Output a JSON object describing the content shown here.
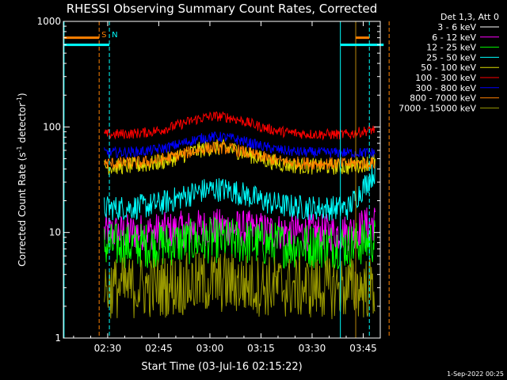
{
  "chart_data": {
    "type": "line",
    "title": "RHESSI Observing Summary Count Rates, Corrected",
    "xlabel": "Start Time (03-Jul-16 02:15:22)",
    "ylabel_main": "Corrected Count Rate (s",
    "ylabel_sup1": "-1",
    "ylabel_mid": " detector",
    "ylabel_sup2": "-1",
    "ylabel_end": ")",
    "yscale": "log",
    "ylim": [
      1,
      1000
    ],
    "xlim_minutes": [
      2.0,
      95.0
    ],
    "x_ticks": [
      {
        "minute": 15,
        "label": "02:30"
      },
      {
        "minute": 30,
        "label": "02:45"
      },
      {
        "minute": 45,
        "label": "03:00"
      },
      {
        "minute": 60,
        "label": "03:15"
      },
      {
        "minute": 75,
        "label": "03:30"
      },
      {
        "minute": 90,
        "label": "03:45"
      }
    ],
    "y_ticks": [
      {
        "value": 1,
        "label": "1"
      },
      {
        "value": 10,
        "label": "10"
      },
      {
        "value": 100,
        "label": "100"
      },
      {
        "value": 1000,
        "label": "1000"
      }
    ],
    "legend_title": "Det 1,3, Att 0",
    "legend_position": "top-right",
    "footer_date": "1-Sep-2022 00:25",
    "series": [
      {
        "name": "3 - 6 keV",
        "color": "#000000",
        "level": 3.0,
        "scatter": 0.35,
        "bump": 0.0,
        "rise": 0.0,
        "segment": [
          -1,
          1
        ]
      },
      {
        "name": "6 - 12 keV",
        "color": "#ff00ff",
        "level": 10.0,
        "scatter": 0.18,
        "bump": 0.05,
        "rise": 0.1,
        "segment": [
          -1,
          1
        ]
      },
      {
        "name": "12 - 25 keV",
        "color": "#00ff00",
        "level": 7.5,
        "scatter": 0.22,
        "bump": 0.05,
        "rise": 0.05,
        "segment": [
          -1,
          1
        ]
      },
      {
        "name": "25 - 50 keV",
        "color": "#00ffff",
        "level": 17.0,
        "scatter": 0.12,
        "bump": 0.18,
        "rise": 0.35,
        "segment": [
          -1,
          1
        ]
      },
      {
        "name": "50 - 100 keV",
        "color": "#dddd00",
        "level": 42.0,
        "scatter": 0.08,
        "bump": 0.18,
        "rise": 0.05,
        "segment": [
          -1,
          1
        ]
      },
      {
        "name": "100 - 300 keV",
        "color": "#ff0000",
        "level": 85.0,
        "scatter": 0.05,
        "bump": 0.17,
        "rise": 0.05,
        "segment": [
          -1,
          1
        ]
      },
      {
        "name": "300 - 800 keV",
        "color": "#0000ff",
        "level": 57.0,
        "scatter": 0.05,
        "bump": 0.15,
        "rise": 0.0,
        "segment": [
          -1,
          1
        ]
      },
      {
        "name": "800 - 7000 keV",
        "color": "#ff8000",
        "level": 45.0,
        "scatter": 0.06,
        "bump": 0.15,
        "rise": 0.0,
        "segment": [
          -1,
          1
        ]
      },
      {
        "name": "7000 - 15000 keV",
        "color": "#999900",
        "level": 3.0,
        "scatter": 0.3,
        "bump": 0.05,
        "rise": 0.0,
        "segment": [
          -1,
          1
        ]
      }
    ],
    "data_start_minute": 14.0,
    "data_end_minute": 93.5,
    "markers": [
      {
        "label": "S",
        "color": "#ff8000",
        "minute": 12.5,
        "style": "dashed"
      },
      {
        "label": "N",
        "color": "#00ffff",
        "minute": 15.5,
        "style": "dashed"
      },
      {
        "label": "",
        "color": "#00ffff",
        "minute": 2.2,
        "style": "solid"
      },
      {
        "label": "",
        "color": "#00ffff",
        "minute": 83.3,
        "style": "solid"
      },
      {
        "label": "",
        "color": "#b8860b",
        "minute": 87.8,
        "style": "solid"
      },
      {
        "label": "",
        "color": "#00ffff",
        "minute": 91.8,
        "style": "dashed"
      },
      {
        "label": "",
        "color": "#ff8000",
        "minute": 97.6,
        "style": "dashed"
      }
    ],
    "flag_bars": [
      {
        "color": "#ff8000",
        "from_minute": 2.2,
        "to_minute": 12.5,
        "value": 700
      },
      {
        "color": "#00ffff",
        "from_minute": 2.2,
        "to_minute": 15.5,
        "value": 600
      },
      {
        "color": "#ff8000",
        "from_minute": 87.8,
        "to_minute": 91.8,
        "value": 700
      },
      {
        "color": "#00ffff",
        "from_minute": 83.3,
        "to_minute": 96.0,
        "value": 600
      }
    ]
  }
}
